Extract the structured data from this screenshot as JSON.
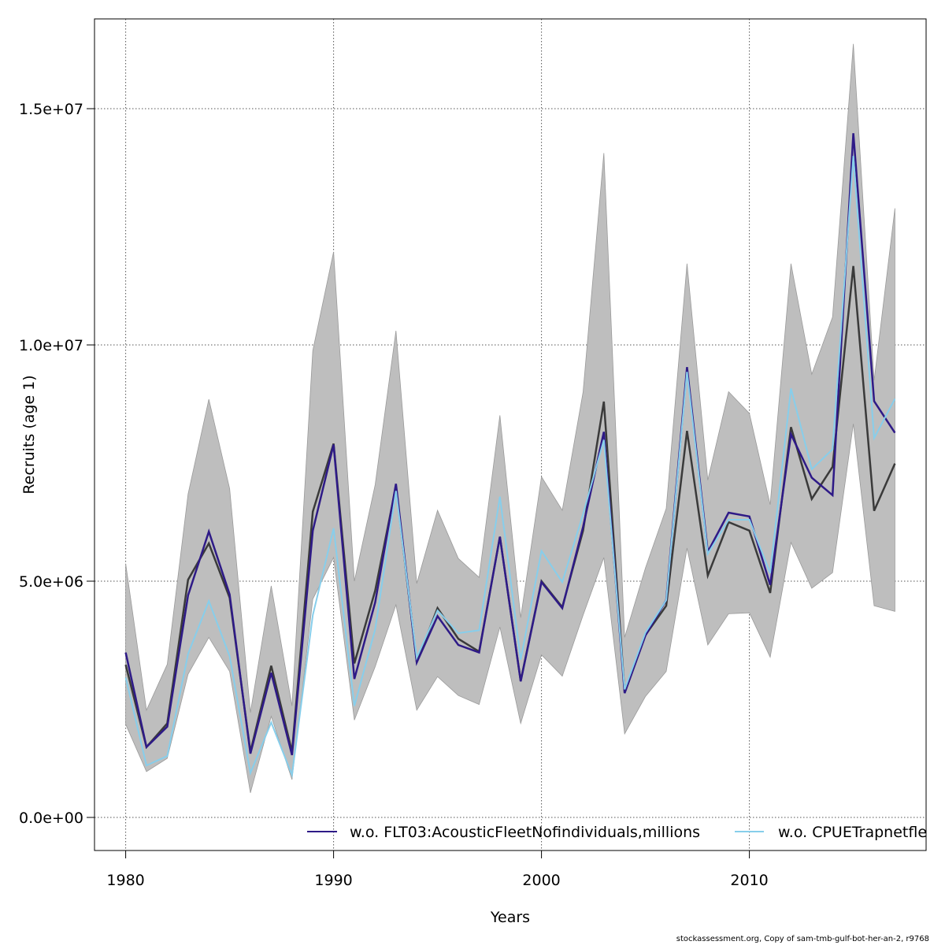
{
  "chart_data": {
    "type": "line",
    "xlabel": "Years",
    "ylabel": "Recruits (age 1)",
    "xlim": [
      1978.5,
      2018.5
    ],
    "ylim": [
      -700000,
      16900000
    ],
    "x_ticks": [
      1980,
      1990,
      2000,
      2010
    ],
    "x_tick_labels": [
      "1980",
      "1990",
      "2000",
      "2010"
    ],
    "y_ticks": [
      0,
      5000000,
      10000000,
      15000000
    ],
    "y_tick_labels": [
      "0.0e+00",
      "5.0e+06",
      "1.0e+07",
      "1.5e+07"
    ],
    "grid": true,
    "legend_position": "bottom",
    "x": [
      1980,
      1981,
      1982,
      1983,
      1984,
      1985,
      1986,
      1987,
      1988,
      1989,
      1990,
      1991,
      1992,
      1993,
      1994,
      1995,
      1996,
      1997,
      1998,
      1999,
      2000,
      2001,
      2002,
      2003,
      2004,
      2005,
      2006,
      2007,
      2008,
      2009,
      2010,
      2011,
      2012,
      2013,
      2014,
      2015,
      2016,
      2017
    ],
    "band": {
      "color": "#BEBEBE",
      "lower": [
        1970000,
        970000,
        1250000,
        3030000,
        3810000,
        3090000,
        520000,
        2140000,
        800000,
        4620000,
        5500000,
        2060000,
        3190000,
        4500000,
        2270000,
        2980000,
        2580000,
        2390000,
        4030000,
        1990000,
        3440000,
        2990000,
        4280000,
        5500000,
        1770000,
        2560000,
        3090000,
        5700000,
        3650000,
        4310000,
        4330000,
        3390000,
        5820000,
        4850000,
        5180000,
        8330000,
        4480000,
        4360000
      ],
      "upper": [
        5370000,
        2270000,
        3240000,
        6840000,
        8850000,
        6960000,
        2220000,
        4900000,
        2360000,
        9880000,
        11970000,
        5000000,
        7040000,
        10300000,
        4950000,
        6500000,
        5480000,
        5080000,
        8510000,
        4230000,
        7210000,
        6500000,
        9000000,
        14060000,
        3810000,
        5280000,
        6540000,
        11720000,
        7140000,
        9010000,
        8550000,
        6620000,
        11720000,
        9380000,
        10590000,
        16370000,
        9250000,
        12890000
      ]
    },
    "series": [
      {
        "color": "#3A3A3A",
        "values": [
          3230000,
          1490000,
          1990000,
          5030000,
          5800000,
          4650000,
          1390000,
          3210000,
          1390000,
          6470000,
          7910000,
          3260000,
          4800000,
          7010000,
          3290000,
          4430000,
          3780000,
          3510000,
          5940000,
          2890000,
          5000000,
          4450000,
          6070000,
          8800000,
          2640000,
          3860000,
          4480000,
          8180000,
          5120000,
          6250000,
          6070000,
          4750000,
          8260000,
          6740000,
          7420000,
          11670000,
          6490000,
          7490000
        ]
      },
      {
        "name": "w.o. FLT03:AcousticFleetNofindividuals,millions",
        "color": "#2E1A87",
        "values": [
          3490000,
          1490000,
          1920000,
          4700000,
          6050000,
          4720000,
          1350000,
          3060000,
          1320000,
          6070000,
          7890000,
          2930000,
          4550000,
          7060000,
          3280000,
          4260000,
          3650000,
          3490000,
          5940000,
          2880000,
          4980000,
          4430000,
          6150000,
          8160000,
          2630000,
          3850000,
          4600000,
          9530000,
          5620000,
          6450000,
          6370000,
          4920000,
          8110000,
          7190000,
          6820000,
          14480000,
          8810000,
          8140000
        ]
      },
      {
        "name": "w.o. CPUETrapnetfle",
        "color": "#87CEEB",
        "values": [
          2960000,
          1100000,
          1300000,
          3460000,
          4580000,
          3410000,
          940000,
          2010000,
          900000,
          4280000,
          6120000,
          2360000,
          3980000,
          6910000,
          3380000,
          4380000,
          3900000,
          3960000,
          6790000,
          3340000,
          5640000,
          4980000,
          6420000,
          7990000,
          2710000,
          3910000,
          4600000,
          9430000,
          5580000,
          6300000,
          6300000,
          5170000,
          9080000,
          7370000,
          7790000,
          14000000,
          8030000,
          8860000
        ]
      }
    ]
  },
  "credit": "stockassessment.org, Copy  of  sam-tmb-gulf-bot-her-an-2, r9768"
}
